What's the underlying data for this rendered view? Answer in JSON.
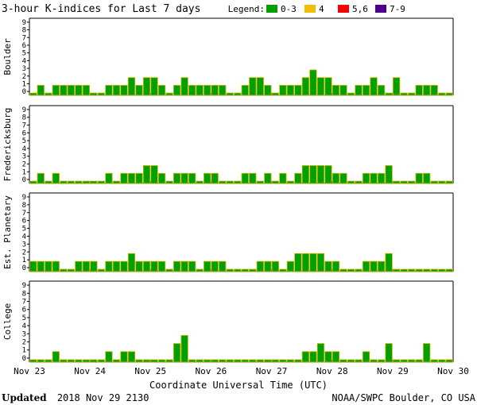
{
  "chart_data": {
    "type": "bar",
    "title": "3-hour K-indices for Last 7 days",
    "legend": {
      "label": "Legend:",
      "placement": "top-right",
      "items": [
        {
          "label": "0-3",
          "color": "#00a000"
        },
        {
          "label": "4",
          "color": "#f0c000"
        },
        {
          "label": "5,6",
          "color": "#ff0000"
        },
        {
          "label": "7-9",
          "color": "#4b0090"
        }
      ]
    },
    "xlabel": "Coordinate Universal Time (UTC)",
    "x_ticks": [
      "Nov 23",
      "Nov 24",
      "Nov 25",
      "Nov 26",
      "Nov 27",
      "Nov 28",
      "Nov 29",
      "Nov 30"
    ],
    "ylim": [
      0,
      9
    ],
    "y_ticks": [
      "0",
      "1",
      "2",
      "3",
      "4",
      "5",
      "6",
      "7",
      "8",
      "9"
    ],
    "bar_color": "#00a000",
    "bar_edge_color": "#d4b800",
    "intervals_per_day": 8,
    "grid": false,
    "series": [
      {
        "name": "Boulder",
        "values": [
          0,
          1,
          0,
          1,
          1,
          1,
          1,
          1,
          0,
          0,
          1,
          1,
          1,
          2,
          1,
          2,
          2,
          1,
          0,
          1,
          2,
          1,
          1,
          1,
          1,
          1,
          0,
          0,
          1,
          2,
          2,
          1,
          0,
          1,
          1,
          1,
          2,
          3,
          2,
          2,
          1,
          1,
          0,
          1,
          1,
          2,
          1,
          0,
          2,
          0,
          0,
          1,
          1,
          1,
          0,
          0
        ]
      },
      {
        "name": "Fredericksburg",
        "values": [
          0,
          1,
          0,
          1,
          0,
          0,
          0,
          0,
          0,
          0,
          1,
          0,
          1,
          1,
          1,
          2,
          2,
          1,
          0,
          1,
          1,
          1,
          0,
          1,
          1,
          0,
          0,
          0,
          1,
          1,
          0,
          1,
          0,
          1,
          0,
          1,
          2,
          2,
          2,
          2,
          1,
          1,
          0,
          0,
          1,
          1,
          1,
          2,
          0,
          0,
          0,
          1,
          1,
          0,
          0,
          0
        ]
      },
      {
        "name": "Est. Planetary",
        "values": [
          1,
          1,
          1,
          1,
          0,
          0,
          1,
          1,
          1,
          0,
          1,
          1,
          1,
          2,
          1,
          1,
          1,
          1,
          0,
          1,
          1,
          1,
          0,
          1,
          1,
          1,
          0,
          0,
          0,
          0,
          1,
          1,
          1,
          0,
          1,
          2,
          2,
          2,
          2,
          1,
          1,
          0,
          0,
          0,
          1,
          1,
          1,
          2,
          0,
          0,
          0,
          0,
          0,
          0,
          0,
          0
        ]
      },
      {
        "name": "College",
        "values": [
          0,
          0,
          0,
          1,
          0,
          0,
          0,
          0,
          0,
          0,
          1,
          0,
          1,
          1,
          0,
          0,
          0,
          0,
          0,
          2,
          3,
          0,
          0,
          0,
          0,
          0,
          0,
          0,
          0,
          0,
          0,
          0,
          0,
          0,
          0,
          0,
          1,
          1,
          2,
          1,
          1,
          0,
          0,
          0,
          1,
          0,
          0,
          2,
          0,
          0,
          0,
          0,
          2,
          0,
          0,
          0
        ]
      }
    ]
  },
  "footer": {
    "updated_label": "Updated",
    "updated_value": "2018 Nov 29 2130",
    "source": "NOAA/SWPC Boulder, CO USA"
  }
}
